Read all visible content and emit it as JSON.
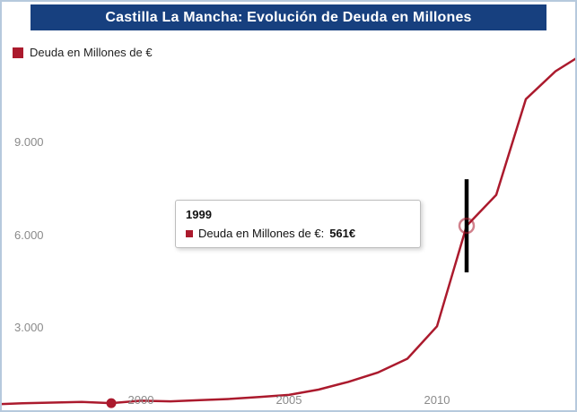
{
  "title": "Castilla La Mancha: Evolución de Deuda en Millones",
  "legend": {
    "label": "Deuda en Millones de €"
  },
  "tooltip": {
    "year": "1999",
    "series_label": "Deuda en Millones de €:",
    "value": "561€"
  },
  "colors": {
    "line": "#ab1a2d",
    "marker": "#ab1a2d",
    "title_bg": "#17407f",
    "title_text": "#ffffff",
    "axis_text": "#8a8a8a",
    "crosshair": "#000000",
    "frame_border": "#b6c9dd"
  },
  "chart_data": {
    "type": "line",
    "title": "Castilla La Mancha: Evolución de Deuda en Millones",
    "xlabel": "",
    "ylabel": "Deuda en Millones de €",
    "grid": false,
    "legend_position": "top-left",
    "xlim": [
      1995,
      2015
    ],
    "ylim": [
      0,
      12000
    ],
    "x_ticks": [
      2000,
      2005,
      2010
    ],
    "x_tick_labels": [
      "2000",
      "2005",
      "2010"
    ],
    "y_ticks": [
      3000,
      6000,
      9000
    ],
    "y_tick_labels": [
      "3.000",
      "6.000",
      "9.000"
    ],
    "series": [
      {
        "name": "Deuda en Millones de €",
        "x": [
          1995,
          1996,
          1997,
          1998,
          1999,
          2000,
          2001,
          2002,
          2003,
          2004,
          2005,
          2006,
          2007,
          2008,
          2009,
          2010,
          2011,
          2012,
          2013,
          2014,
          2015
        ],
        "values": [
          520,
          560,
          580,
          600,
          561,
          640,
          620,
          660,
          700,
          760,
          830,
          1000,
          1250,
          1550,
          2000,
          3050,
          6300,
          7300,
          10400,
          11300,
          11900
        ]
      }
    ],
    "highlight_point": {
      "year": 1999,
      "value": 561
    },
    "crosshair_point": {
      "year": 2011,
      "value": 6300
    }
  }
}
